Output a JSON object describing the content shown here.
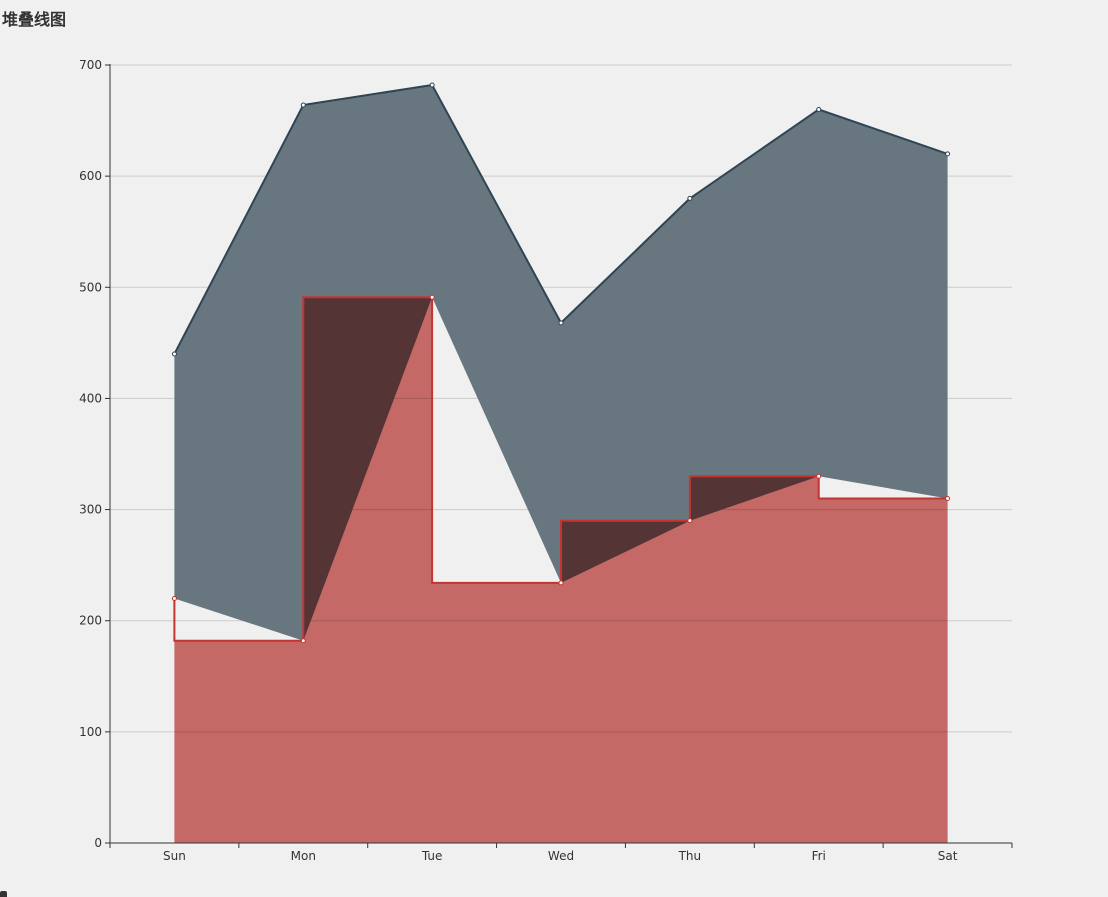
{
  "title": "堆叠线图",
  "chart_data": {
    "type": "line",
    "title": "堆叠线图",
    "stacked": true,
    "categories": [
      "Sun",
      "Mon",
      "Tue",
      "Wed",
      "Thu",
      "Fri",
      "Sat"
    ],
    "ylim": [
      0,
      700
    ],
    "yticks": [
      0,
      100,
      200,
      300,
      400,
      500,
      600,
      700
    ],
    "grid": true,
    "legend": "none",
    "series": [
      {
        "values": [
          220,
          182,
          491,
          234,
          290,
          330,
          310
        ],
        "step": "start",
        "color": "#c23531",
        "area_color": "#d06a67"
      },
      {
        "values": [
          220,
          482,
          191,
          234,
          290,
          330,
          310
        ],
        "color": "#2f4554",
        "area_color": "#68777f"
      }
    ]
  }
}
